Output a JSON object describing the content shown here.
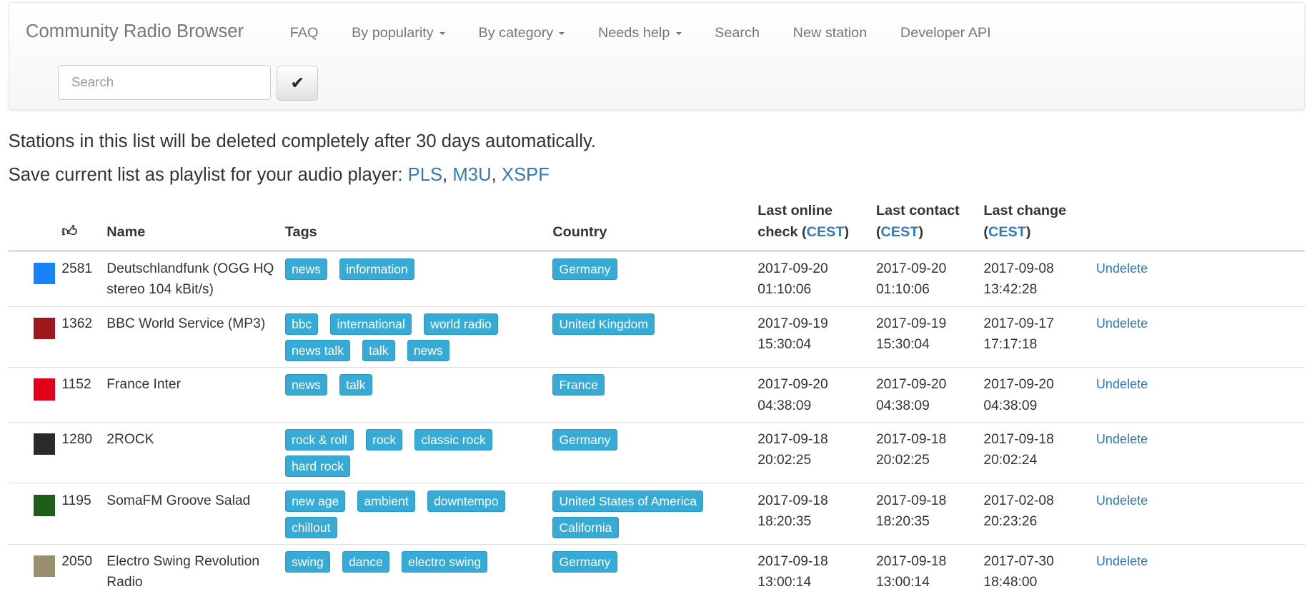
{
  "navbar": {
    "brand": "Community Radio Browser",
    "items": [
      {
        "label": "FAQ",
        "dropdown": false
      },
      {
        "label": "By popularity",
        "dropdown": true
      },
      {
        "label": "By category",
        "dropdown": true
      },
      {
        "label": "Needs help",
        "dropdown": true
      },
      {
        "label": "Search",
        "dropdown": false
      },
      {
        "label": "New station",
        "dropdown": false
      },
      {
        "label": "Developer API",
        "dropdown": false
      }
    ],
    "search_placeholder": "Search",
    "search_value": "",
    "submit_icon": "checkmark-icon"
  },
  "notice": "Stations in this list will be deleted completely after 30 days automatically.",
  "playlist": {
    "text": "Save current list as playlist for your audio player: ",
    "links": [
      "PLS",
      "M3U",
      "XSPF"
    ],
    "sep": ", "
  },
  "table": {
    "headers": {
      "votes_icon": "thumbs-up-icon",
      "name": "Name",
      "tags": "Tags",
      "country": "Country",
      "online_a": "Last online",
      "online_b": "check (",
      "contact_a": "Last contact",
      "contact_b": "(",
      "change_a": "Last change",
      "change_b": "(",
      "tz": "CEST",
      "close": ")"
    },
    "rows": [
      {
        "icon": "deutschlandfunk-logo",
        "icon_color": "#1a82f7",
        "votes": "2581",
        "name": "Deutschlandfunk (OGG HQ stereo 104 kBit/s)",
        "tags": [
          "news",
          "information"
        ],
        "country": [
          "Germany"
        ],
        "online": [
          "2017-09-20",
          "01:10:06"
        ],
        "contact": [
          "2017-09-20",
          "01:10:06"
        ],
        "change": [
          "2017-09-08",
          "13:42:28"
        ],
        "action": "Undelete"
      },
      {
        "icon": "bbc-world-service-logo",
        "icon_color": "#a0171d",
        "votes": "1362",
        "name": "BBC World Service (MP3)",
        "tags": [
          "bbc",
          "international",
          "world radio",
          "news talk",
          "talk",
          "news"
        ],
        "country": [
          "United Kingdom"
        ],
        "online": [
          "2017-09-19",
          "15:30:04"
        ],
        "contact": [
          "2017-09-19",
          "15:30:04"
        ],
        "change": [
          "2017-09-17",
          "17:17:18"
        ],
        "action": "Undelete"
      },
      {
        "icon": "france-inter-logo",
        "icon_color": "#e2001a",
        "votes": "1152",
        "name": "France Inter",
        "tags": [
          "news",
          "talk"
        ],
        "country": [
          "France"
        ],
        "online": [
          "2017-09-20",
          "04:38:09"
        ],
        "contact": [
          "2017-09-20",
          "04:38:09"
        ],
        "change": [
          "2017-09-20",
          "04:38:09"
        ],
        "action": "Undelete"
      },
      {
        "icon": "2rock-logo",
        "icon_color": "#2a2a2a",
        "votes": "1280",
        "name": "2ROCK",
        "tags": [
          "rock & roll",
          "rock",
          "classic rock",
          "hard rock"
        ],
        "country": [
          "Germany"
        ],
        "online": [
          "2017-09-18",
          "20:02:25"
        ],
        "contact": [
          "2017-09-18",
          "20:02:25"
        ],
        "change": [
          "2017-09-18",
          "20:02:24"
        ],
        "action": "Undelete"
      },
      {
        "icon": "somafm-groove-salad-logo",
        "icon_color": "#1f5e1a",
        "votes": "1195",
        "name": "SomaFM Groove Salad",
        "tags": [
          "new age",
          "ambient",
          "downtempo",
          "chillout"
        ],
        "country": [
          "United States of America",
          "California"
        ],
        "online": [
          "2017-09-18",
          "18:20:35"
        ],
        "contact": [
          "2017-09-18",
          "18:20:35"
        ],
        "change": [
          "2017-02-08",
          "20:23:26"
        ],
        "action": "Undelete"
      },
      {
        "icon": "electro-swing-revolution-logo",
        "icon_color": "#9a8f6c",
        "votes": "2050",
        "name": "Electro Swing Revolution Radio",
        "tags": [
          "swing",
          "dance",
          "electro swing"
        ],
        "country": [
          "Germany"
        ],
        "online": [
          "2017-09-18",
          "13:00:14"
        ],
        "contact": [
          "2017-09-18",
          "13:00:14"
        ],
        "change": [
          "2017-07-30",
          "18:48:00"
        ],
        "action": "Undelete"
      }
    ]
  }
}
